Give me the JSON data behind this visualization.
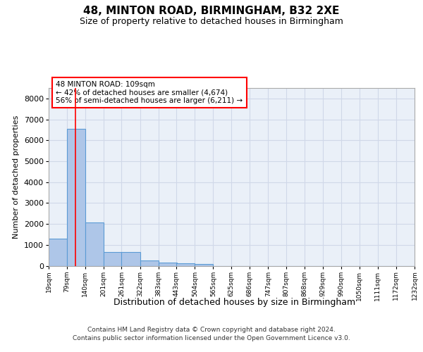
{
  "title1": "48, MINTON ROAD, BIRMINGHAM, B32 2XE",
  "title2": "Size of property relative to detached houses in Birmingham",
  "xlabel": "Distribution of detached houses by size in Birmingham",
  "ylabel": "Number of detached properties",
  "footer1": "Contains HM Land Registry data © Crown copyright and database right 2024.",
  "footer2": "Contains public sector information licensed under the Open Government Licence v3.0.",
  "annotation_line1": "48 MINTON ROAD: 109sqm",
  "annotation_line2": "← 42% of detached houses are smaller (4,674)",
  "annotation_line3": "56% of semi-detached houses are larger (6,211) →",
  "bar_left_edges": [
    19,
    79,
    140,
    201,
    261,
    322,
    383,
    443,
    504,
    565,
    625,
    686,
    747,
    807,
    868,
    929,
    990,
    1050,
    1111,
    1172
  ],
  "bar_heights": [
    1310,
    6550,
    2080,
    650,
    650,
    260,
    140,
    110,
    75,
    0,
    0,
    0,
    0,
    0,
    0,
    0,
    0,
    0,
    0,
    0
  ],
  "bin_width": 61,
  "bar_color": "#aec6e8",
  "bar_edge_color": "#5b9bd5",
  "grid_color": "#d0d8e8",
  "bg_color": "#eaf0f8",
  "red_line_x": 109,
  "ylim": [
    0,
    8500
  ],
  "yticks": [
    0,
    1000,
    2000,
    3000,
    4000,
    5000,
    6000,
    7000,
    8000
  ],
  "tick_labels": [
    "19sqm",
    "79sqm",
    "140sqm",
    "201sqm",
    "261sqm",
    "322sqm",
    "383sqm",
    "443sqm",
    "504sqm",
    "565sqm",
    "625sqm",
    "686sqm",
    "747sqm",
    "807sqm",
    "868sqm",
    "929sqm",
    "990sqm",
    "1050sqm",
    "1111sqm",
    "1172sqm",
    "1232sqm"
  ],
  "title1_fontsize": 11,
  "title2_fontsize": 9,
  "xlabel_fontsize": 9,
  "ylabel_fontsize": 8,
  "annotation_fontsize": 7.5,
  "tick_fontsize": 6.5,
  "footer_fontsize": 6.5
}
